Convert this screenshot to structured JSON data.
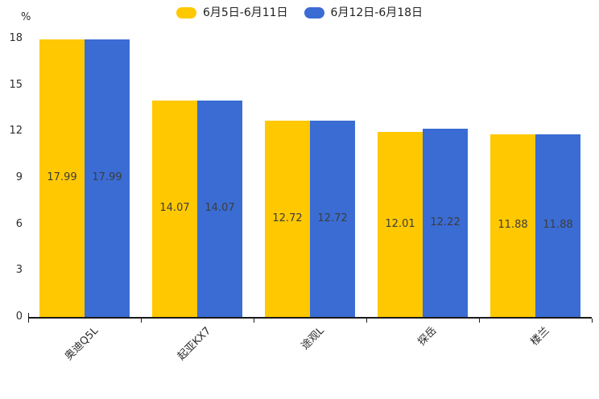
{
  "unit_label": "%",
  "legend": {
    "items": [
      {
        "label": "6月5日-6月11日",
        "color": "#FFC800"
      },
      {
        "label": "6月12日-6月18日",
        "color": "#3A6CD3"
      }
    ]
  },
  "colors": {
    "series1": "#FFC800",
    "series2": "#3A6CD3",
    "axis": "#1a1a1a",
    "value_label_text": "#3d3d3d",
    "tick_label_text": "#2e2e2e"
  },
  "chart_data": {
    "type": "bar",
    "title": "",
    "xlabel": "",
    "ylabel": "%",
    "categories": [
      "奥迪Q5L",
      "起亚KX7",
      "途观L",
      "探岳",
      "楼兰"
    ],
    "series": [
      {
        "name": "6月5日-6月11日",
        "color": "#FFC800",
        "values": [
          17.99,
          14.07,
          12.72,
          12.01,
          11.88
        ]
      },
      {
        "name": "6月12日-6月18日",
        "color": "#3A6CD3",
        "values": [
          17.99,
          14.07,
          12.72,
          12.22,
          11.88
        ]
      }
    ],
    "ylim": [
      0,
      18
    ],
    "yticks": [
      0,
      3,
      6,
      9,
      12,
      15,
      18
    ],
    "grid": false,
    "value_labels": "centered-inside-bars",
    "legend_position": "top-center",
    "xtick_label_rotation_deg": 45
  }
}
